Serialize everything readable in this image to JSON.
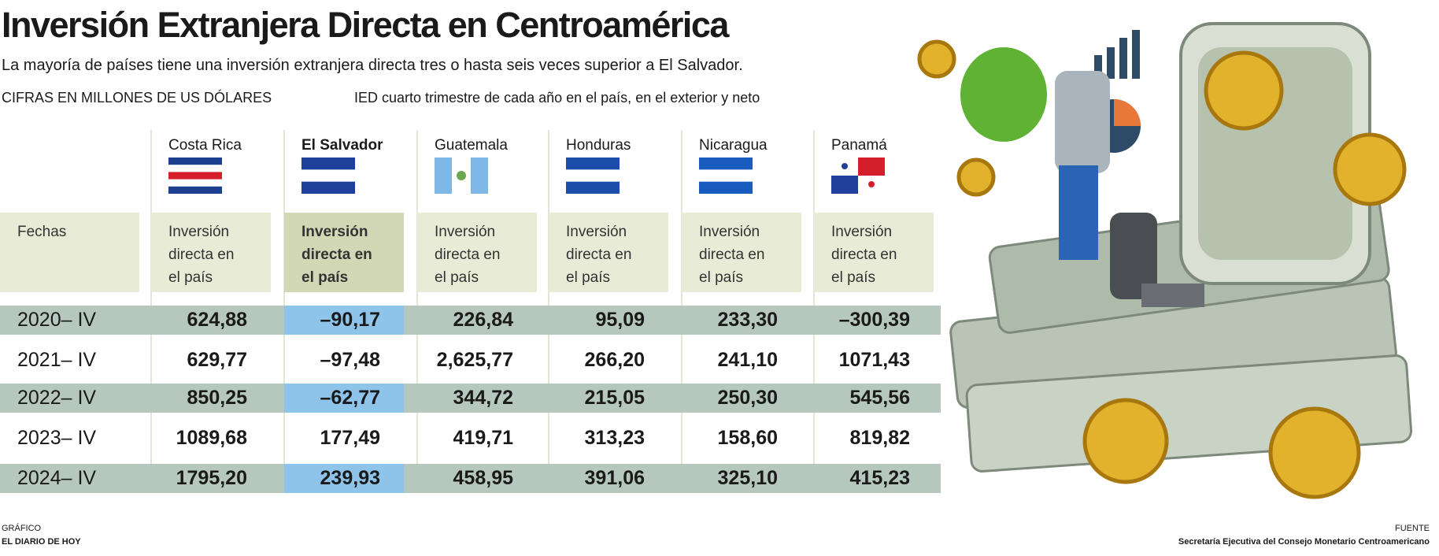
{
  "header": {
    "title": "Inversión Extranjera Directa en Centroamérica",
    "subtitle": "La mayoría de países tiene una inversión extranjera directa tres o hasta seis veces superior a El Salvador.",
    "units": "CIFRAS EN MILLONES DE US DÓLARES",
    "note": "IED cuarto trimestre de cada año en el país, en el exterior y neto"
  },
  "table": {
    "row_header": "Fechas",
    "columns": [
      "Costa Rica",
      "El Salvador",
      "Guatemala",
      "Honduras",
      "Nicaragua",
      "Panamá"
    ],
    "col_headers": [
      "Inversión directa en el país",
      "Inversión directa en el país",
      "Inversión directa en el país",
      "Inversión directa en el país",
      "Inversión directa en el país",
      "Inversión directa en el país"
    ],
    "rows": [
      [
        "2020– IV",
        "624,88",
        "–90,17",
        "226,84",
        "95,09",
        "233,30",
        "–300,39"
      ],
      [
        "2021– IV",
        "629,77",
        "–97,48",
        "2,625,77",
        "266,20",
        "241,10",
        "1071,43"
      ],
      [
        "2022– IV",
        "850,25",
        "–62,77",
        "344,72",
        "215,05",
        "250,30",
        "545,56"
      ],
      [
        "2023– IV",
        "1089,68",
        "177,49",
        "419,71",
        "313,23",
        "158,60",
        "819,82"
      ],
      [
        "2024– IV",
        "1795,20",
        "239,93",
        "458,95",
        "391,06",
        "325,10",
        "415,23"
      ]
    ]
  },
  "footer": {
    "credit_label": "GRÁFICO",
    "credit": "EL DIARIO DE HOY",
    "source_label": "FUENTE",
    "source": "Secretaría Ejecutiva del Consejo Monetario Centroamericano"
  }
}
